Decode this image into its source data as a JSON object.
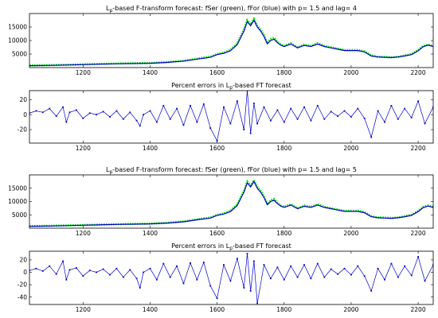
{
  "chart_data": [
    {
      "type": "line",
      "title": {
        "prefix": "L",
        "sub": "p",
        "rest": "-based F-transform forecast: fSer (green), fFor (blue)  with p= 1.5 and lag= 4"
      },
      "xlim": [
        1040,
        2245
      ],
      "ylim": [
        0,
        20000
      ],
      "xticks": [
        1200,
        1400,
        1600,
        1800,
        2000,
        2200
      ],
      "yticks": [
        5000,
        10000,
        15000
      ],
      "grid": false,
      "series": [
        {
          "kind": "green-markers",
          "color": "#00dd00",
          "x": [
            1040,
            1100,
            1200,
            1300,
            1400,
            1450,
            1500,
            1550,
            1580,
            1600,
            1620,
            1640,
            1660,
            1680,
            1690,
            1700,
            1710,
            1720,
            1730,
            1740,
            1750,
            1760,
            1770,
            1780,
            1790,
            1800,
            1820,
            1840,
            1860,
            1880,
            1900,
            1920,
            1940,
            1960,
            1980,
            2000,
            2020,
            2040,
            2060,
            2080,
            2100,
            2120,
            2140,
            2160,
            2180,
            2200,
            2215,
            2230,
            2245
          ],
          "y": [
            800,
            900,
            1200,
            1500,
            1700,
            2000,
            2500,
            3500,
            4000,
            5000,
            5500,
            6500,
            9000,
            14000,
            17500,
            16000,
            18000,
            15500,
            14000,
            12000,
            9000,
            10500,
            11000,
            9500,
            8500,
            8000,
            9000,
            7500,
            8500,
            8000,
            9000,
            8000,
            7500,
            7000,
            6500,
            6500,
            6500,
            6000,
            4500,
            4000,
            4000,
            3800,
            4000,
            4500,
            5000,
            6500,
            8000,
            8500,
            8000
          ]
        },
        {
          "kind": "blue-line",
          "color": "#0000cc",
          "x": [
            1040,
            1100,
            1200,
            1300,
            1400,
            1450,
            1500,
            1550,
            1580,
            1600,
            1620,
            1640,
            1660,
            1680,
            1690,
            1700,
            1710,
            1720,
            1730,
            1740,
            1750,
            1760,
            1770,
            1780,
            1790,
            1800,
            1820,
            1840,
            1860,
            1880,
            1900,
            1920,
            1940,
            1960,
            1980,
            2000,
            2020,
            2040,
            2060,
            2080,
            2100,
            2120,
            2140,
            2160,
            2180,
            2200,
            2215,
            2230,
            2245
          ],
          "y": [
            700,
            800,
            1100,
            1400,
            1600,
            1900,
            2400,
            3300,
            3800,
            4800,
            5300,
            6200,
            8500,
            13500,
            17000,
            15500,
            17500,
            15000,
            13500,
            11500,
            8800,
            10000,
            10500,
            9200,
            8300,
            7800,
            8700,
            7300,
            8200,
            7800,
            8700,
            7800,
            7300,
            6800,
            6300,
            6300,
            6300,
            5800,
            4300,
            3900,
            3800,
            3700,
            3900,
            4300,
            4800,
            6200,
            7700,
            8300,
            7800
          ]
        }
      ]
    },
    {
      "type": "line",
      "title": {
        "prefix": "Percent errors in L",
        "sub": "p",
        "rest": "-based FT forecast"
      },
      "xlim": [
        1040,
        2245
      ],
      "ylim": [
        -38,
        32
      ],
      "xticks": [
        1200,
        1400,
        1600,
        1800,
        2000,
        2200
      ],
      "yticks": [
        -20,
        0,
        20
      ],
      "grid": false,
      "series": [
        {
          "kind": "blue-markers-line",
          "color": "#0000cc",
          "x": [
            1040,
            1060,
            1080,
            1100,
            1120,
            1140,
            1150,
            1160,
            1180,
            1200,
            1220,
            1240,
            1260,
            1280,
            1300,
            1320,
            1340,
            1360,
            1370,
            1380,
            1400,
            1420,
            1440,
            1460,
            1480,
            1500,
            1520,
            1540,
            1560,
            1580,
            1600,
            1620,
            1640,
            1660,
            1680,
            1690,
            1700,
            1710,
            1720,
            1740,
            1760,
            1780,
            1800,
            1820,
            1840,
            1860,
            1880,
            1900,
            1920,
            1940,
            1960,
            1980,
            2000,
            2020,
            2040,
            2060,
            2080,
            2100,
            2120,
            2140,
            2160,
            2180,
            2200,
            2220,
            2245
          ],
          "y": [
            2,
            5,
            3,
            8,
            -2,
            10,
            -10,
            3,
            6,
            -5,
            2,
            0,
            4,
            -3,
            5,
            -6,
            3,
            -8,
            -15,
            0,
            5,
            -10,
            12,
            -6,
            8,
            -14,
            12,
            -10,
            14,
            -18,
            -35,
            10,
            -12,
            18,
            -20,
            32,
            -25,
            15,
            -12,
            10,
            -8,
            6,
            -10,
            8,
            -6,
            10,
            -8,
            12,
            -6,
            4,
            -2,
            5,
            -3,
            8,
            -5,
            -30,
            5,
            -10,
            12,
            -6,
            8,
            -4,
            18,
            -12,
            10
          ]
        }
      ]
    },
    {
      "type": "line",
      "title": {
        "prefix": "L",
        "sub": "p",
        "rest": "-based F-transform forecast: fSer (green), fFor (blue)  with p= 1.5 and lag= 5"
      },
      "xlim": [
        1040,
        2245
      ],
      "ylim": [
        0,
        20000
      ],
      "xticks": [
        1200,
        1400,
        1600,
        1800,
        2000,
        2200
      ],
      "yticks": [
        5000,
        10000,
        15000
      ],
      "grid": false,
      "series": [
        {
          "kind": "green-markers",
          "color": "#00dd00",
          "x": [
            1040,
            1100,
            1200,
            1300,
            1400,
            1450,
            1500,
            1550,
            1580,
            1600,
            1620,
            1640,
            1660,
            1680,
            1690,
            1700,
            1710,
            1720,
            1730,
            1740,
            1750,
            1760,
            1770,
            1780,
            1790,
            1800,
            1820,
            1840,
            1860,
            1880,
            1900,
            1920,
            1940,
            1960,
            1980,
            2000,
            2020,
            2040,
            2060,
            2080,
            2100,
            2120,
            2140,
            2160,
            2180,
            2200,
            2215,
            2230,
            2245
          ],
          "y": [
            800,
            900,
            1200,
            1500,
            1700,
            2000,
            2500,
            3500,
            4000,
            5000,
            5500,
            6500,
            9000,
            14000,
            17500,
            16000,
            18000,
            15500,
            14000,
            12000,
            9000,
            10500,
            11000,
            9500,
            8500,
            8000,
            9000,
            7500,
            8500,
            8000,
            9000,
            8000,
            7500,
            7000,
            6500,
            6500,
            6500,
            6000,
            4500,
            4000,
            4000,
            3800,
            4000,
            4500,
            5000,
            6500,
            8000,
            8500,
            8000
          ]
        },
        {
          "kind": "blue-line",
          "color": "#0000cc",
          "x": [
            1040,
            1100,
            1200,
            1300,
            1400,
            1450,
            1500,
            1550,
            1580,
            1600,
            1620,
            1640,
            1660,
            1680,
            1690,
            1700,
            1710,
            1720,
            1730,
            1740,
            1750,
            1760,
            1770,
            1780,
            1790,
            1800,
            1820,
            1840,
            1860,
            1880,
            1900,
            1920,
            1940,
            1960,
            1980,
            2000,
            2020,
            2040,
            2060,
            2080,
            2100,
            2120,
            2140,
            2160,
            2180,
            2200,
            2215,
            2230,
            2245
          ],
          "y": [
            700,
            800,
            1100,
            1400,
            1600,
            1900,
            2400,
            3300,
            3800,
            4800,
            5300,
            6200,
            8500,
            13500,
            17000,
            15500,
            17500,
            15000,
            13500,
            11500,
            8800,
            10000,
            10500,
            9200,
            8300,
            7800,
            8700,
            7300,
            8200,
            7800,
            8700,
            7800,
            7300,
            6800,
            6300,
            6300,
            6300,
            5800,
            4300,
            3900,
            3800,
            3700,
            3900,
            4300,
            4800,
            6200,
            7700,
            8300,
            7800
          ]
        }
      ]
    },
    {
      "type": "line",
      "title": {
        "prefix": "Percent errors in L",
        "sub": "p",
        "rest": "-based FT forecast"
      },
      "xlim": [
        1040,
        2245
      ],
      "ylim": [
        -52,
        34
      ],
      "xticks": [
        1200,
        1400,
        1600,
        1800,
        2000,
        2200
      ],
      "yticks": [
        -40,
        -20,
        0,
        20
      ],
      "grid": false,
      "series": [
        {
          "kind": "blue-markers-line",
          "color": "#0000cc",
          "x": [
            1040,
            1060,
            1080,
            1100,
            1120,
            1140,
            1150,
            1160,
            1180,
            1200,
            1220,
            1240,
            1260,
            1280,
            1300,
            1320,
            1340,
            1360,
            1370,
            1380,
            1400,
            1420,
            1440,
            1460,
            1480,
            1500,
            1520,
            1540,
            1560,
            1580,
            1600,
            1620,
            1640,
            1660,
            1680,
            1690,
            1700,
            1710,
            1720,
            1740,
            1760,
            1780,
            1800,
            1820,
            1840,
            1860,
            1880,
            1900,
            1920,
            1940,
            1960,
            1980,
            2000,
            2020,
            2040,
            2060,
            2080,
            2100,
            2120,
            2140,
            2160,
            2180,
            2200,
            2220,
            2245
          ],
          "y": [
            3,
            6,
            2,
            10,
            -3,
            18,
            -12,
            4,
            7,
            -6,
            3,
            0,
            5,
            -4,
            6,
            -8,
            4,
            -10,
            -25,
            0,
            6,
            -12,
            14,
            -8,
            10,
            -18,
            15,
            -12,
            16,
            -22,
            -42,
            12,
            -14,
            22,
            -25,
            30,
            -30,
            18,
            -50,
            12,
            -10,
            8,
            -12,
            10,
            -8,
            12,
            -10,
            14,
            -8,
            5,
            -3,
            6,
            -4,
            10,
            -6,
            -30,
            6,
            -12,
            14,
            -8,
            10,
            -5,
            25,
            -14,
            12
          ]
        }
      ]
    }
  ]
}
